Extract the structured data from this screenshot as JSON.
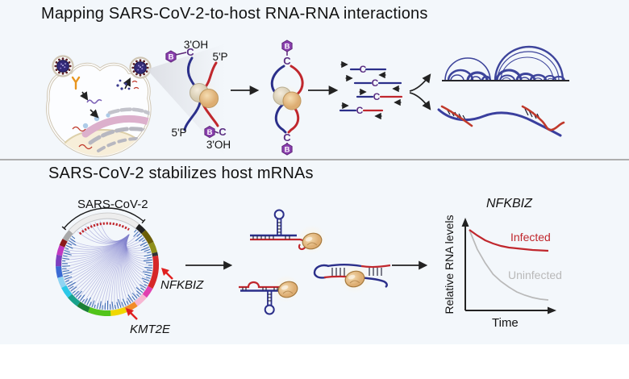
{
  "panels": {
    "top": {
      "title": "Mapping SARS-CoV-2-to-host RNA-RNA interactions",
      "labels": {
        "three_oh": "3'OH",
        "five_p": "5'P",
        "biotin": "B",
        "crosslink_c": "C"
      }
    },
    "bottom": {
      "title": "SARS-CoV-2 stabilizes host mRNAs",
      "circos": {
        "label": "SARS-CoV-2",
        "gene1": "NFKBIZ",
        "gene2": "KMT2E",
        "chord_color": "#8585cf",
        "tick_color": "#3f6db5",
        "genome_color": "#c0272d",
        "segments": [
          {
            "a1": 38,
            "a2": 48,
            "c": "#222222"
          },
          {
            "a1": 48,
            "a2": 64,
            "c": "#6b5d07"
          },
          {
            "a1": 64,
            "a2": 76,
            "c": "#8f8f1a"
          },
          {
            "a1": 76,
            "a2": 80,
            "c": "#333333"
          },
          {
            "a1": 80,
            "a2": 118,
            "c": "#d62728"
          },
          {
            "a1": 118,
            "a2": 130,
            "c": "#e040b0"
          },
          {
            "a1": 130,
            "a2": 144,
            "c": "#f7b6d2"
          },
          {
            "a1": 144,
            "a2": 158,
            "c": "#f28c28"
          },
          {
            "a1": 158,
            "a2": 176,
            "c": "#f0d800"
          },
          {
            "a1": 176,
            "a2": 202,
            "c": "#52c41a"
          },
          {
            "a1": 202,
            "a2": 216,
            "c": "#1a7f37"
          },
          {
            "a1": 216,
            "a2": 230,
            "c": "#18a28c"
          },
          {
            "a1": 230,
            "a2": 243,
            "c": "#2cc8e8"
          },
          {
            "a1": 243,
            "a2": 255,
            "c": "#8fd4f2"
          },
          {
            "a1": 255,
            "a2": 268,
            "c": "#3a6ad4"
          },
          {
            "a1": 268,
            "a2": 281,
            "c": "#7d3fbf"
          },
          {
            "a1": 281,
            "a2": 292,
            "c": "#c038c0"
          },
          {
            "a1": 292,
            "a2": 300,
            "c": "#8b1a1a"
          },
          {
            "a1": 300,
            "a2": 312,
            "c": "#a8a8a8"
          }
        ]
      }
    }
  },
  "chart_data": {
    "type": "line",
    "title": "NFKBIZ",
    "xlabel": "Time",
    "ylabel": "Relative RNA levels",
    "x": [
      0,
      1,
      2,
      3,
      4,
      5,
      6,
      7,
      8,
      9,
      10
    ],
    "ylim": [
      0,
      1
    ],
    "grid": false,
    "legend_position": "inline-annotations",
    "series": [
      {
        "name": "Infected",
        "color": "#c0272d",
        "values": [
          1.0,
          0.93,
          0.87,
          0.83,
          0.8,
          0.78,
          0.77,
          0.76,
          0.75,
          0.745,
          0.74
        ]
      },
      {
        "name": "Uninfected",
        "color": "#b9b9b9",
        "values": [
          1.0,
          0.76,
          0.59,
          0.45,
          0.36,
          0.29,
          0.23,
          0.19,
          0.16,
          0.14,
          0.13
        ]
      }
    ]
  },
  "colors": {
    "background": "#f3f7fb",
    "rna_blue": "#2b2f8a",
    "rna_red": "#c0272d",
    "biotin_purple": "#8a3fae",
    "crosslink_purple": "#5a2d82",
    "arc_blue": "#3d449b",
    "protein_tan": "#e0b27c",
    "gene_arrow_red": "#e01f1f"
  }
}
